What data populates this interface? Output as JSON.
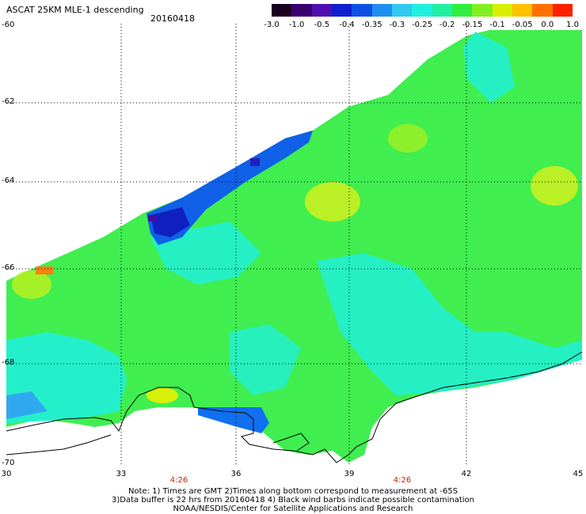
{
  "header": {
    "title": "ASCAT 25KM MLE-1 descending",
    "date": "20160418"
  },
  "colorbar": {
    "labels": [
      "-3.0",
      "-1.0",
      "-0.5",
      "-0.4",
      "-0.35",
      "-0.3",
      "-0.25",
      "-0.2",
      "-0.15",
      "-0.1",
      "-0.05",
      "0.0",
      "1.0"
    ],
    "colors": [
      "#1a0020",
      "#3a0070",
      "#5010b0",
      "#1020d0",
      "#1050e8",
      "#2090f0",
      "#30c8f0",
      "#20f0e0",
      "#20f0a0",
      "#30ee40",
      "#80f020",
      "#d8f000",
      "#ffc000",
      "#ff7000",
      "#ff2000"
    ]
  },
  "map": {
    "lat_labels": [
      "-60",
      "-62",
      "-64",
      "-66",
      "-68",
      "-70"
    ],
    "lon_labels": [
      "30",
      "33",
      "36",
      "39",
      "42",
      "45"
    ],
    "time_labels": [
      "4:26",
      "4:26"
    ]
  },
  "footer": {
    "line1": "Note: 1) Times are GMT 2)Times along bottom correspond to measurement at -65S",
    "line2": "3)Data buffer is 22 hrs from 20160418 4) Black wind barbs indicate possible contamination",
    "line3": "NOAA/NESDIS/Center for Satellite Applications and Research"
  }
}
